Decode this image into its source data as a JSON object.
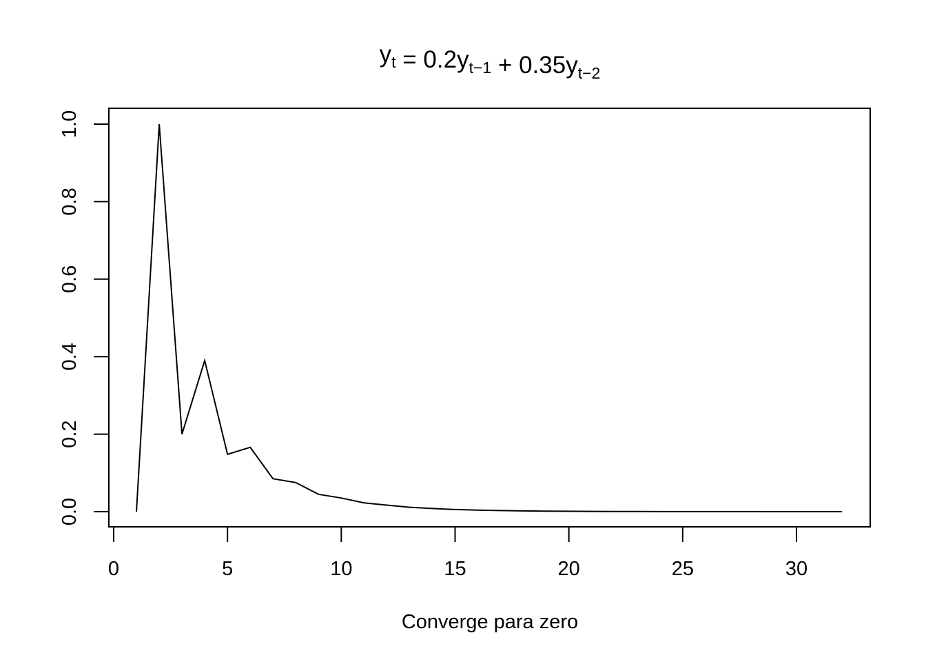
{
  "chart_data": {
    "type": "line",
    "title": {
      "parts": [
        {
          "text": "y",
          "sub": "t"
        },
        {
          "text": " =  0.2y",
          "sub": "t−1"
        },
        {
          "text": " + 0.35y",
          "sub": "t−2"
        }
      ]
    },
    "xlabel": "Converge para zero",
    "ylabel": "",
    "x_ticks": [
      "0",
      "5",
      "10",
      "15",
      "20",
      "25",
      "30"
    ],
    "y_ticks": [
      "0.0",
      "0.2",
      "0.4",
      "0.6",
      "0.8",
      "1.0"
    ],
    "xlim": [
      0,
      32
    ],
    "ylim": [
      0,
      1
    ],
    "grid": false,
    "legend": "none",
    "line_color": "#000000",
    "series": [
      {
        "x": [
          1,
          2,
          3,
          4,
          5,
          6,
          7,
          8,
          9,
          10,
          11,
          12,
          13,
          14,
          15,
          16,
          17,
          18,
          19,
          20,
          21,
          22,
          23,
          24,
          25,
          26,
          27,
          28,
          29,
          30,
          31,
          32
        ],
        "values": [
          0,
          1,
          0.2,
          0.39,
          0.148,
          0.1661,
          0.085,
          0.0751,
          0.0448,
          0.0353,
          0.0228,
          0.0169,
          0.0114,
          0.0082,
          0.0056,
          0.004,
          0.0028,
          0.002,
          0.0014,
          0.001,
          0.0007,
          0.0005,
          0.0003,
          0.0002,
          0.0002,
          0.0001,
          0.0001,
          0.0001,
          0.0,
          0.0,
          0.0,
          0.0
        ]
      }
    ]
  }
}
